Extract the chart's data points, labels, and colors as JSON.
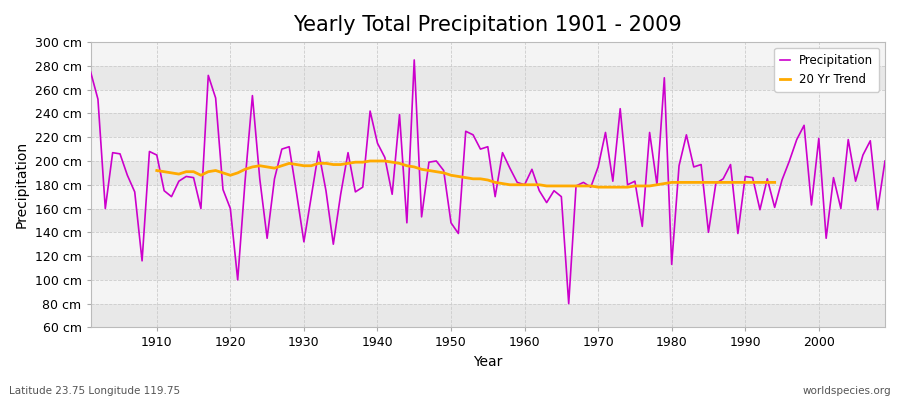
{
  "title": "Yearly Total Precipitation 1901 - 2009",
  "xlabel": "Year",
  "ylabel": "Precipitation",
  "xlim": [
    1901,
    2009
  ],
  "ylim": [
    60,
    300
  ],
  "yticks": [
    60,
    80,
    100,
    120,
    140,
    160,
    180,
    200,
    220,
    240,
    260,
    280,
    300
  ],
  "xticks": [
    1910,
    1920,
    1930,
    1940,
    1950,
    1960,
    1970,
    1980,
    1990,
    2000
  ],
  "background_color": "#f0f0f0",
  "plot_bg_color": "#f0f0f0",
  "band_color_light": "#f8f8f8",
  "band_color_dark": "#e8e8e8",
  "grid_color": "#cccccc",
  "precip_color": "#cc00cc",
  "trend_color": "#ffaa00",
  "precip_linewidth": 1.2,
  "trend_linewidth": 2.0,
  "title_fontsize": 15,
  "label_fontsize": 10,
  "tick_fontsize": 9,
  "footer_left": "Latitude 23.75 Longitude 119.75",
  "footer_right": "worldspecies.org",
  "years": [
    1901,
    1902,
    1903,
    1904,
    1905,
    1906,
    1907,
    1908,
    1909,
    1910,
    1911,
    1912,
    1913,
    1914,
    1915,
    1916,
    1917,
    1918,
    1919,
    1920,
    1921,
    1922,
    1923,
    1924,
    1925,
    1926,
    1927,
    1928,
    1929,
    1930,
    1931,
    1932,
    1933,
    1934,
    1935,
    1936,
    1937,
    1938,
    1939,
    1940,
    1941,
    1942,
    1943,
    1944,
    1945,
    1946,
    1947,
    1948,
    1949,
    1950,
    1951,
    1952,
    1953,
    1954,
    1955,
    1956,
    1957,
    1958,
    1959,
    1960,
    1961,
    1962,
    1963,
    1964,
    1965,
    1966,
    1967,
    1968,
    1969,
    1970,
    1971,
    1972,
    1973,
    1974,
    1975,
    1976,
    1977,
    1978,
    1979,
    1980,
    1981,
    1982,
    1983,
    1984,
    1985,
    1986,
    1987,
    1988,
    1989,
    1990,
    1991,
    1992,
    1993,
    1994,
    1995,
    1996,
    1997,
    1998,
    1999,
    2000,
    2001,
    2002,
    2003,
    2004,
    2005,
    2006,
    2007,
    2008,
    2009
  ],
  "precip": [
    275,
    252,
    160,
    207,
    206,
    188,
    174,
    116,
    208,
    205,
    175,
    170,
    183,
    187,
    186,
    160,
    272,
    253,
    176,
    160,
    100,
    183,
    255,
    185,
    135,
    185,
    210,
    212,
    173,
    132,
    170,
    208,
    175,
    130,
    172,
    207,
    174,
    178,
    242,
    215,
    203,
    172,
    239,
    148,
    285,
    153,
    199,
    200,
    192,
    148,
    139,
    225,
    222,
    210,
    212,
    170,
    207,
    194,
    182,
    180,
    193,
    175,
    165,
    175,
    170,
    80,
    179,
    182,
    178,
    195,
    224,
    183,
    244,
    180,
    183,
    145,
    224,
    180,
    270,
    113,
    196,
    222,
    195,
    197,
    140,
    181,
    185,
    197,
    139,
    187,
    186,
    159,
    185,
    161,
    184,
    200,
    218,
    230,
    163,
    219,
    135,
    186,
    160,
    218,
    183,
    205,
    217,
    159,
    200
  ],
  "trend": [
    null,
    null,
    null,
    null,
    null,
    null,
    null,
    null,
    null,
    192,
    191,
    190,
    189,
    191,
    191,
    188,
    191,
    192,
    190,
    188,
    190,
    193,
    195,
    196,
    195,
    194,
    196,
    198,
    197,
    196,
    196,
    198,
    198,
    197,
    197,
    198,
    199,
    199,
    200,
    200,
    200,
    199,
    198,
    196,
    195,
    193,
    192,
    191,
    190,
    188,
    187,
    186,
    185,
    185,
    184,
    182,
    181,
    180,
    180,
    180,
    180,
    180,
    179,
    179,
    179,
    179,
    179,
    179,
    179,
    178,
    178,
    178,
    178,
    178,
    179,
    179,
    179,
    180,
    181,
    182,
    182,
    182,
    182,
    182,
    182,
    182,
    182,
    182,
    182,
    182,
    182,
    182,
    182,
    182,
    null,
    null,
    null,
    null,
    null,
    null,
    null,
    null,
    null,
    null,
    null,
    null,
    null,
    null,
    null
  ]
}
